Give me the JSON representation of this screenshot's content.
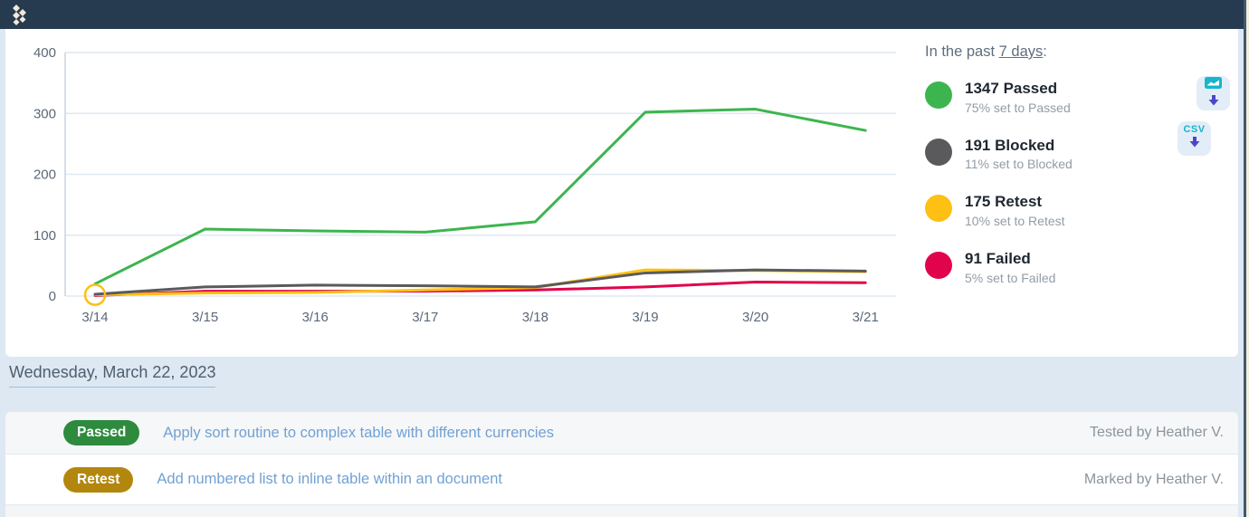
{
  "header": {
    "logo_icon": "diamonds-chevron-logo"
  },
  "chart_panel": {
    "legend": {
      "title_prefix": "In the past ",
      "range_link": "7 days",
      "title_suffix": ":",
      "entries": [
        {
          "count": "1347",
          "label": "Passed",
          "sub": "75% set to Passed",
          "color": "#3cb54f"
        },
        {
          "count": "191",
          "label": "Blocked",
          "sub": "11% set to Blocked",
          "color": "#5a5a5c"
        },
        {
          "count": "175",
          "label": "Retest",
          "sub": "10% set to Retest",
          "color": "#fdc013"
        },
        {
          "count": "91",
          "label": "Failed",
          "sub": "5% set to Failed",
          "color": "#e1044c"
        }
      ]
    },
    "downloads": {
      "chart_icon": "chart-image-download-icon",
      "csv_label": "CSV",
      "arrow_icon": "down-arrow-icon"
    }
  },
  "chart_data": {
    "type": "line",
    "categories": [
      "3/14",
      "3/15",
      "3/16",
      "3/17",
      "3/18",
      "3/19",
      "3/20",
      "3/21"
    ],
    "series": [
      {
        "name": "Passed",
        "color": "#3cb54f",
        "values": [
          20,
          110,
          107,
          105,
          122,
          302,
          307,
          272
        ]
      },
      {
        "name": "Blocked",
        "color": "#5a5a5c",
        "values": [
          3,
          15,
          18,
          17,
          15,
          38,
          43,
          41
        ]
      },
      {
        "name": "Retest",
        "color": "#fdc013",
        "values": [
          2,
          5,
          6,
          10,
          14,
          43,
          42,
          40
        ]
      },
      {
        "name": "Failed",
        "color": "#e1044c",
        "values": [
          1,
          8,
          8,
          8,
          10,
          15,
          23,
          22
        ]
      }
    ],
    "title": "",
    "xlabel": "",
    "ylabel": "",
    "ylim": [
      0,
      400
    ],
    "yticks": [
      0,
      100,
      200,
      300,
      400
    ],
    "grid": true,
    "legend_position": "right",
    "highlight_marker": {
      "series": "Retest",
      "index": 0
    }
  },
  "activity": {
    "date_heading": "Wednesday, March 22, 2023",
    "rows": [
      {
        "status": "Passed",
        "status_color": "#2e8b3e",
        "title": "Apply sort routine to complex table with different currencies",
        "meta": "Tested by Heather V."
      },
      {
        "status": "Retest",
        "status_color": "#b3870e",
        "title": "Add numbered list to inline table within an document",
        "meta": "Marked by Heather V."
      }
    ]
  }
}
